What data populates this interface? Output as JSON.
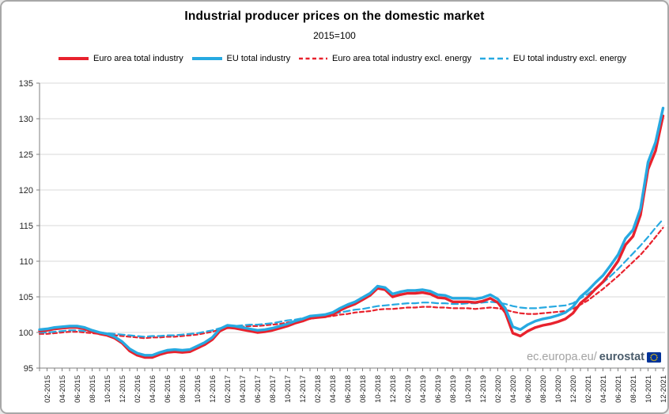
{
  "header": {
    "title": "Industrial producer prices on the domestic market",
    "subtitle": "2015=100"
  },
  "watermark": {
    "prefix": "ec.europa.eu/",
    "brand": "eurostat",
    "flag_icon": "eu-flag-icon"
  },
  "colors": {
    "red": "#e8222d",
    "blue": "#27a9e1",
    "grid": "#d9d9d9",
    "axis": "#7f7f7f",
    "tick_text": "#262626",
    "flag_blue": "#003399",
    "flag_stars": "#ffcc00"
  },
  "chart_data": {
    "type": "line",
    "title": "Industrial producer prices on the domestic market",
    "subtitle": "2015=100",
    "xlabel": "",
    "ylabel": "",
    "x_unit": "month",
    "x_start": "01-2015",
    "x_end": "12-2021",
    "x_label_every": 2,
    "tick_labels": [
      "02-2015",
      "04-2015",
      "06-2015",
      "08-2015",
      "10-2015",
      "12-2015",
      "02-2016",
      "04-2016",
      "06-2016",
      "08-2016",
      "10-2016",
      "12-2016",
      "02-2017",
      "04-2017",
      "06-2017",
      "08-2017",
      "10-2017",
      "12-2017",
      "02-2018",
      "04-2018",
      "06-2018",
      "08-2018",
      "10-2018",
      "12-2018",
      "02-2019",
      "04-2019",
      "06-2019",
      "08-2019",
      "10-2019",
      "12-2019",
      "02-2020",
      "04-2020",
      "06-2020",
      "08-2020",
      "10-2020",
      "12-2020",
      "02-2021",
      "04-2021",
      "06-2021",
      "08-2021",
      "10-2021",
      "12-2021"
    ],
    "ylim": [
      95,
      135
    ],
    "y_ticks": [
      95,
      100,
      105,
      110,
      115,
      120,
      125,
      130,
      135
    ],
    "grid": "horizontal",
    "legend_position": "top",
    "series": [
      {
        "name": "Euro area total industry",
        "color": "#e8222d",
        "style": "solid",
        "values": [
          100.2,
          100.3,
          100.5,
          100.6,
          100.7,
          100.7,
          100.5,
          100.1,
          99.8,
          99.6,
          99.2,
          98.5,
          97.4,
          96.8,
          96.5,
          96.5,
          96.9,
          97.2,
          97.3,
          97.2,
          97.3,
          97.8,
          98.3,
          99.0,
          100.2,
          100.7,
          100.6,
          100.4,
          100.2,
          100.0,
          100.1,
          100.3,
          100.6,
          100.9,
          101.3,
          101.6,
          102.0,
          102.1,
          102.2,
          102.5,
          103.1,
          103.6,
          104.0,
          104.6,
          105.2,
          106.2,
          106.0,
          105.0,
          105.3,
          105.5,
          105.5,
          105.6,
          105.4,
          104.9,
          104.8,
          104.3,
          104.3,
          104.3,
          104.2,
          104.4,
          104.8,
          104.2,
          102.8,
          99.9,
          99.5,
          100.2,
          100.7,
          101.0,
          101.2,
          101.5,
          101.9,
          102.7,
          104.1,
          105.0,
          106.1,
          107.1,
          108.5,
          110.0,
          112.3,
          113.5,
          116.5,
          122.9,
          125.5,
          130.4
        ]
      },
      {
        "name": "EU total industry",
        "color": "#27a9e1",
        "style": "solid",
        "values": [
          100.4,
          100.5,
          100.7,
          100.8,
          100.9,
          100.9,
          100.7,
          100.3,
          100.0,
          99.8,
          99.4,
          98.7,
          97.7,
          97.1,
          96.8,
          96.8,
          97.2,
          97.5,
          97.6,
          97.5,
          97.6,
          98.1,
          98.6,
          99.3,
          100.5,
          101.0,
          100.9,
          100.7,
          100.5,
          100.3,
          100.4,
          100.6,
          100.9,
          101.2,
          101.6,
          101.9,
          102.3,
          102.4,
          102.5,
          102.8,
          103.4,
          103.9,
          104.3,
          104.9,
          105.5,
          106.5,
          106.3,
          105.4,
          105.7,
          105.9,
          105.9,
          106.0,
          105.8,
          105.3,
          105.2,
          104.8,
          104.8,
          104.8,
          104.7,
          104.9,
          105.3,
          104.7,
          103.4,
          100.8,
          100.4,
          101.1,
          101.6,
          101.9,
          102.1,
          102.4,
          102.8,
          103.6,
          105.0,
          105.9,
          107.0,
          108.0,
          109.4,
          110.9,
          113.2,
          114.4,
          117.4,
          123.9,
          126.7,
          131.5
        ]
      },
      {
        "name": "Euro area total industry excl. energy",
        "color": "#e8222d",
        "style": "dashed",
        "values": [
          99.8,
          99.8,
          99.9,
          100.0,
          100.1,
          100.1,
          100.0,
          99.9,
          99.8,
          99.7,
          99.6,
          99.5,
          99.4,
          99.3,
          99.2,
          99.3,
          99.3,
          99.4,
          99.4,
          99.5,
          99.6,
          99.7,
          99.9,
          100.1,
          100.4,
          100.6,
          100.7,
          100.8,
          100.9,
          100.9,
          101.0,
          101.1,
          101.2,
          101.4,
          101.5,
          101.7,
          101.9,
          102.1,
          102.2,
          102.3,
          102.5,
          102.6,
          102.8,
          102.9,
          103.0,
          103.2,
          103.3,
          103.3,
          103.4,
          103.5,
          103.5,
          103.6,
          103.6,
          103.5,
          103.5,
          103.4,
          103.4,
          103.4,
          103.3,
          103.4,
          103.5,
          103.4,
          103.2,
          102.9,
          102.7,
          102.6,
          102.6,
          102.7,
          102.8,
          102.9,
          103.0,
          103.3,
          103.9,
          104.5,
          105.3,
          106.1,
          107.0,
          107.9,
          108.9,
          109.9,
          110.9,
          112.1,
          113.4,
          114.7
        ]
      },
      {
        "name": "EU total industry excl. energy",
        "color": "#27a9e1",
        "style": "dashed",
        "values": [
          100.0,
          100.0,
          100.1,
          100.2,
          100.3,
          100.3,
          100.2,
          100.1,
          100.0,
          99.9,
          99.8,
          99.7,
          99.6,
          99.5,
          99.4,
          99.5,
          99.5,
          99.6,
          99.6,
          99.7,
          99.8,
          99.9,
          100.1,
          100.3,
          100.6,
          100.8,
          100.9,
          101.0,
          101.1,
          101.1,
          101.2,
          101.3,
          101.5,
          101.7,
          101.8,
          102.0,
          102.2,
          102.4,
          102.5,
          102.6,
          102.8,
          103.0,
          103.2,
          103.3,
          103.5,
          103.7,
          103.8,
          103.9,
          104.0,
          104.1,
          104.1,
          104.2,
          104.2,
          104.1,
          104.1,
          104.0,
          104.0,
          104.1,
          104.1,
          104.2,
          104.3,
          104.2,
          104.0,
          103.7,
          103.5,
          103.4,
          103.4,
          103.5,
          103.6,
          103.7,
          103.8,
          104.1,
          104.8,
          105.4,
          106.2,
          107.0,
          107.9,
          108.9,
          110.0,
          111.1,
          112.2,
          113.4,
          114.7,
          115.9
        ]
      }
    ]
  }
}
